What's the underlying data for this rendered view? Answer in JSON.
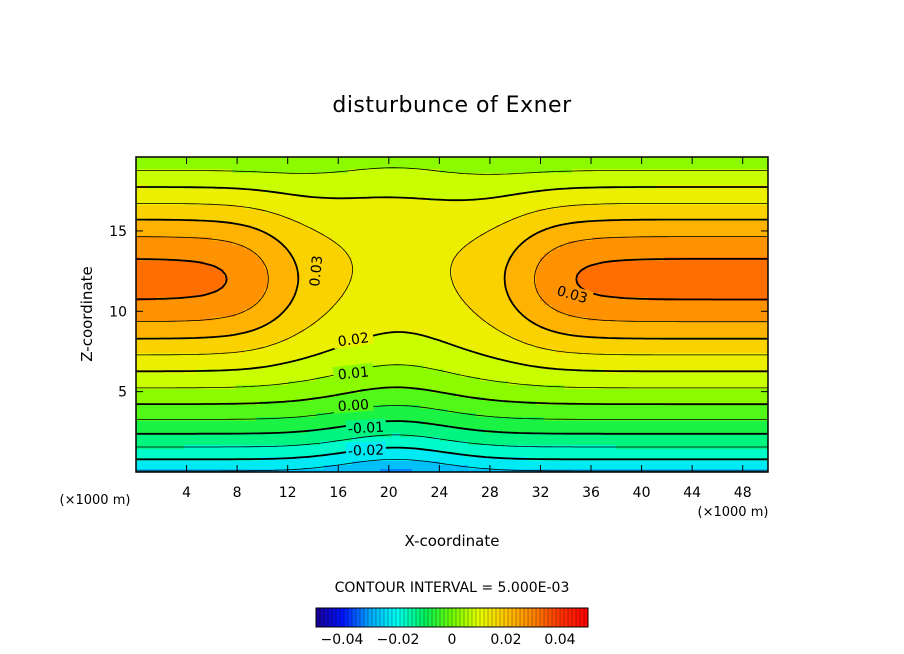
{
  "chart_data": {
    "type": "heatmap",
    "title": "disturbunce of Exner",
    "xlabel": "X-coordinate",
    "ylabel": "Z-coordinate",
    "x_unit": "(×1000 m)",
    "z_unit": "(×1000 m)",
    "xlim": [
      0,
      50
    ],
    "ylim": [
      0,
      19.6
    ],
    "x_ticks": [
      "4",
      "8",
      "12",
      "16",
      "20",
      "24",
      "28",
      "32",
      "36",
      "40",
      "44",
      "48"
    ],
    "y_ticks": [
      "5",
      "10",
      "15"
    ],
    "contour_interval_text": "CONTOUR INTERVAL = 5.000E-03",
    "contour_labels": [
      "0.03",
      "0.03",
      "0.02",
      "0.01",
      "0.00",
      "-0.01",
      "-0.02"
    ],
    "colorbar": {
      "min": -0.05,
      "max": 0.05,
      "tick_labels": [
        "-0.04",
        "-0.02",
        "0",
        "0.02",
        "0.04"
      ]
    },
    "field_extremes": {
      "max_value": 0.04,
      "max_location": "x≈4 and x≈48, z≈12",
      "min_value": -0.025,
      "min_location": "x≈20, z≈0"
    }
  }
}
